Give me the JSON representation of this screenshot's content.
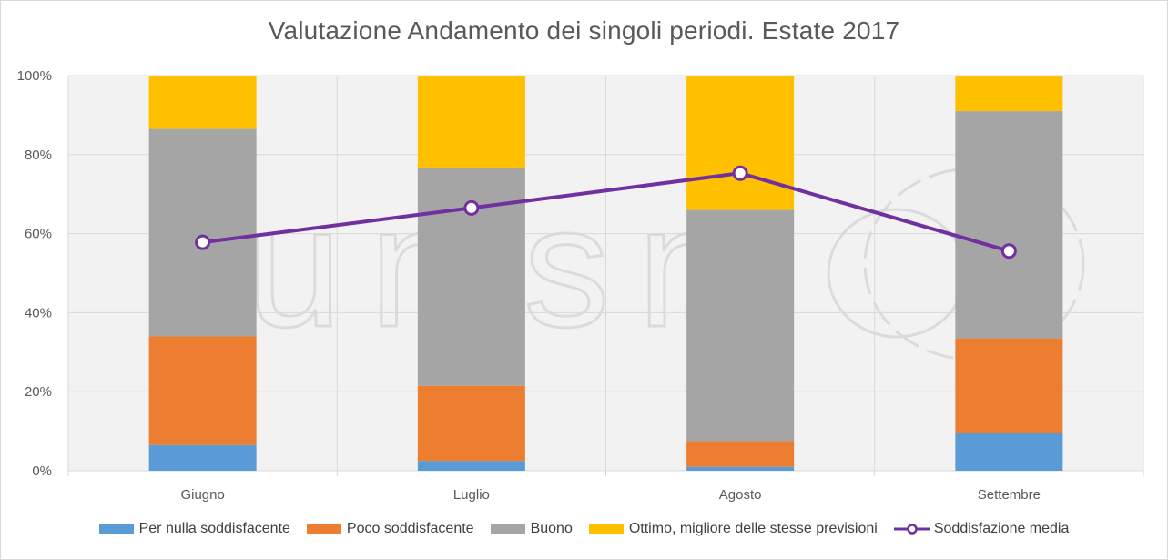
{
  "chart_data": {
    "type": "bar",
    "stacked": true,
    "title": "Valutazione Andamento dei singoli periodi. Estate 2017",
    "categories": [
      "Giugno",
      "Luglio",
      "Agosto",
      "Settembre"
    ],
    "yticks": [
      "0%",
      "20%",
      "40%",
      "60%",
      "80%",
      "100%"
    ],
    "ylim": [
      0,
      100
    ],
    "grid": true,
    "legend_position": "bottom",
    "series": [
      {
        "name": "Per nulla soddisfacente",
        "color": "#5b9bd5",
        "values": [
          6.5,
          2.5,
          1.0,
          9.5
        ]
      },
      {
        "name": "Poco soddisfacente",
        "color": "#ed7d31",
        "values": [
          27.5,
          19.0,
          6.5,
          24.0
        ]
      },
      {
        "name": "Buono",
        "color": "#a5a5a5",
        "values": [
          52.5,
          55.0,
          58.5,
          57.5
        ]
      },
      {
        "name": "Ottimo, migliore delle stesse previsioni",
        "color": "#ffc000",
        "values": [
          13.5,
          23.5,
          34.0,
          9.0
        ]
      }
    ],
    "line_series": {
      "name": "Soddisfazione media",
      "color": "#7030a0",
      "values": [
        57.8,
        66.5,
        75.3,
        55.6
      ]
    }
  }
}
